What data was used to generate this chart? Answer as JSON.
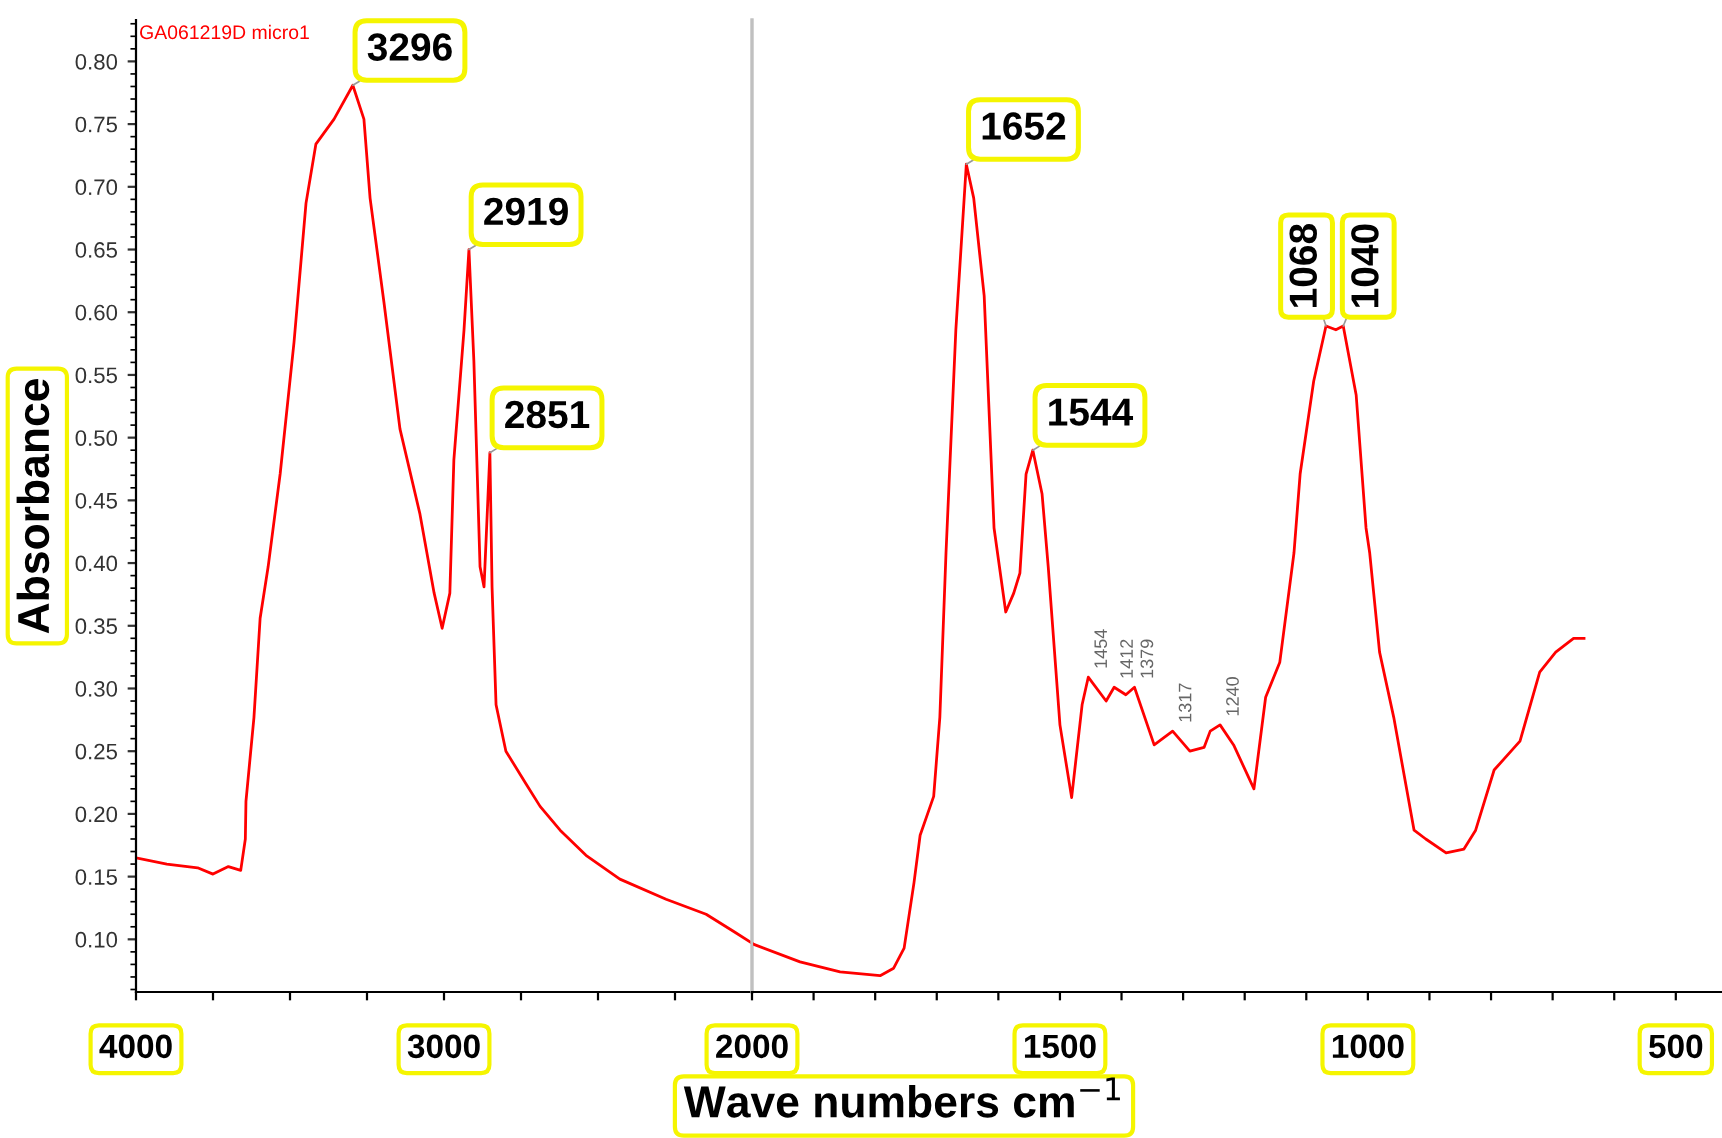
{
  "chart_data": [
    {
      "type": "line",
      "title": "GA061219D micro1",
      "ylabel": "Absorbance",
      "xlim": [
        4000,
        2000
      ],
      "ylim": [
        0.058,
        0.833
      ],
      "xticks": [
        4000,
        {
          "value": 3750,
          "label": null
        },
        {
          "value": 3500,
          "label": null
        },
        {
          "value": 3250,
          "label": null
        },
        3000,
        {
          "value": 2750,
          "label": null
        },
        {
          "value": 2500,
          "label": null
        },
        {
          "value": 2250,
          "label": null
        }
      ],
      "yticks": [
        {
          "value": 0.1,
          "label": "0.10"
        },
        0.15,
        {
          "value": 0.2,
          "label": "0.20"
        },
        0.25,
        {
          "value": 0.3,
          "label": "0.30"
        },
        0.35,
        {
          "value": 0.4,
          "label": "0.40"
        },
        0.45,
        {
          "value": 0.5,
          "label": "0.50"
        },
        0.55,
        {
          "value": 0.6,
          "label": "0.60"
        },
        0.65,
        {
          "value": 0.7,
          "label": "0.70"
        },
        0.75,
        {
          "value": 0.8,
          "label": "0.80"
        }
      ],
      "grid": false,
      "marker": "none",
      "line_style": "solid",
      "series": [
        {
          "color": "#ff0000",
          "x": [
            4000,
            3900,
            3800,
            3750,
            3700,
            3660,
            3645,
            3643,
            3617,
            3597,
            3571,
            3532,
            3487,
            3448,
            3416,
            3357,
            3296,
            3260,
            3240,
            3195,
            3143,
            3078,
            3032,
            3006,
            2981,
            2968,
            2935,
            2919,
            2903,
            2883,
            2870,
            2851,
            2844,
            2831,
            2799,
            2734,
            2688,
            2623,
            2539,
            2429,
            2279,
            2149,
            2058,
            2000
          ],
          "values": [
            0.165,
            0.16,
            0.157,
            0.152,
            0.158,
            0.155,
            0.18,
            0.21,
            0.277,
            0.356,
            0.397,
            0.471,
            0.576,
            0.687,
            0.734,
            0.754,
            0.781,
            0.754,
            0.691,
            0.608,
            0.507,
            0.439,
            0.376,
            0.348,
            0.376,
            0.482,
            0.586,
            0.65,
            0.561,
            0.397,
            0.381,
            0.488,
            0.381,
            0.287,
            0.25,
            0.224,
            0.206,
            0.187,
            0.167,
            0.148,
            0.132,
            0.12,
            0.106,
            0.097
          ]
        }
      ],
      "annotations": [
        {
          "text": "3296",
          "x": 3296,
          "y": 0.781
        },
        {
          "text": "2919",
          "x": 2919,
          "y": 0.65
        },
        {
          "text": "2851",
          "x": 2851,
          "y": 0.488
        }
      ]
    },
    {
      "type": "line",
      "xlabel": "Wave numbers cm$^{−1}$",
      "xlim": [
        2000,
        425
      ],
      "ylim": [
        0.058,
        0.833
      ],
      "tick_labels": "x",
      "ref_lines": [
        {
          "axis": "x",
          "value": 2000,
          "color": "#c0c0c0"
        }
      ],
      "xticks": [
        2000,
        {
          "value": 1900,
          "label": null
        },
        {
          "value": 1800,
          "label": null
        },
        {
          "value": 1700,
          "label": null
        },
        {
          "value": 1600,
          "label": null
        },
        1500,
        {
          "value": 1400,
          "label": null
        },
        {
          "value": 1300,
          "label": null
        },
        {
          "value": 1200,
          "label": null
        },
        {
          "value": 1100,
          "label": null
        },
        1000,
        {
          "value": 900,
          "label": null
        },
        {
          "value": 800,
          "label": null
        },
        {
          "value": 700,
          "label": null
        },
        {
          "value": 600,
          "label": null
        },
        500
      ],
      "grid": false,
      "marker": "none",
      "line_style": "solid",
      "series": [
        {
          "color": "#ff0000",
          "x": [
            2000,
            1997,
            1922,
            1857,
            1792,
            1770,
            1753,
            1737,
            1727,
            1705,
            1695,
            1685,
            1669,
            1652,
            1640,
            1623,
            1607,
            1588,
            1575,
            1565,
            1555,
            1544,
            1529,
            1519,
            1500,
            1481,
            1464,
            1454,
            1425,
            1412,
            1393,
            1379,
            1347,
            1317,
            1289,
            1266,
            1256,
            1240,
            1218,
            1185,
            1166,
            1143,
            1120,
            1110,
            1088,
            1068,
            1052,
            1040,
            1019,
            1003,
            997,
            981,
            958,
            925,
            906,
            873,
            844,
            825,
            795,
            753,
            721,
            695,
            666,
            649
          ],
          "values": [
            0.097,
            0.096,
            0.082,
            0.074,
            0.071,
            0.077,
            0.093,
            0.145,
            0.183,
            0.214,
            0.277,
            0.408,
            0.586,
            0.718,
            0.691,
            0.613,
            0.428,
            0.361,
            0.376,
            0.392,
            0.471,
            0.49,
            0.455,
            0.397,
            0.271,
            0.213,
            0.287,
            0.309,
            0.29,
            0.301,
            0.295,
            0.301,
            0.255,
            0.266,
            0.25,
            0.253,
            0.266,
            0.271,
            0.255,
            0.22,
            0.293,
            0.321,
            0.408,
            0.471,
            0.545,
            0.589,
            0.586,
            0.589,
            0.534,
            0.428,
            0.408,
            0.329,
            0.277,
            0.187,
            0.18,
            0.169,
            0.172,
            0.187,
            0.235,
            0.258,
            0.313,
            0.329,
            0.34,
            0.34
          ]
        }
      ],
      "annotations": [
        {
          "text": "1652",
          "x": 1652,
          "y": 0.718
        },
        {
          "text": "1544",
          "x": 1544,
          "y": 0.49
        },
        {
          "text": "1068",
          "x": 1068,
          "y": 0.589
        },
        {
          "text": "1040",
          "x": 1040,
          "y": 0.589
        },
        {
          "text": "1454",
          "x": 1454,
          "y": 0.309
        },
        {
          "text": "1412",
          "x": 1412,
          "y": 0.301
        },
        {
          "text": "1379",
          "x": 1379,
          "y": 0.301
        },
        {
          "text": "1317",
          "x": 1317,
          "y": 0.266
        },
        {
          "text": "1240",
          "x": 1240,
          "y": 0.271
        }
      ]
    }
  ]
}
